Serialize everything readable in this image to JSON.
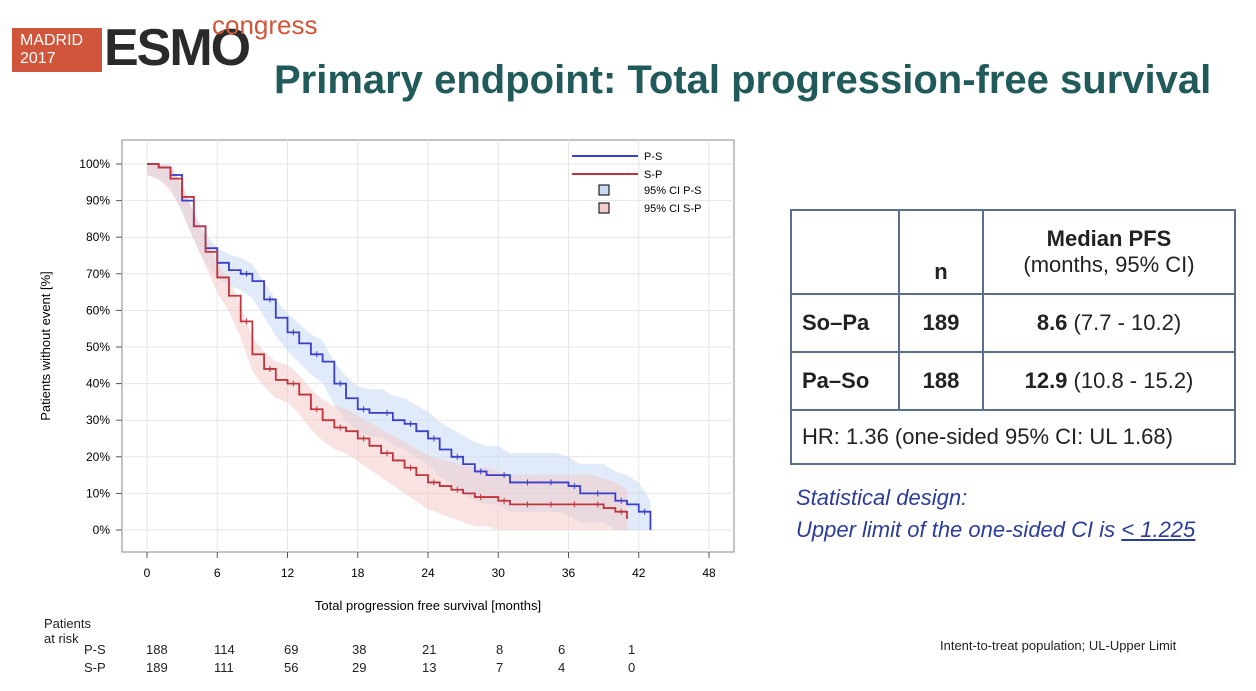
{
  "logo": {
    "city": "MADRID",
    "year": "2017",
    "brand": "ESMO",
    "suffix": "congress"
  },
  "title": "Primary endpoint: Total progression-free survival",
  "chart_data": {
    "type": "line",
    "xlabel": "Total progression free survival [months]",
    "ylabel": "Patients without event [%]",
    "xlim": [
      0,
      48
    ],
    "ylim": [
      0,
      100
    ],
    "x_ticks": [
      "0",
      "6",
      "12",
      "18",
      "24",
      "30",
      "36",
      "42",
      "48"
    ],
    "y_ticks": [
      "0%",
      "10%",
      "20%",
      "30%",
      "40%",
      "50%",
      "60%",
      "70%",
      "80%",
      "90%",
      "100%"
    ],
    "legend": {
      "position": "top-right",
      "entries": [
        "P-S",
        "S-P",
        "95% CI P-S",
        "95% CI S-P"
      ]
    },
    "series": [
      {
        "name": "P-S",
        "color": "#3b3fc9",
        "ci_color": "#c9d8f3",
        "x": [
          0,
          1,
          2,
          3,
          4,
          5,
          6,
          7,
          8,
          9,
          10,
          11,
          12,
          13,
          14,
          15,
          16,
          17,
          18,
          19,
          20,
          21,
          22,
          23,
          24,
          25,
          26,
          27,
          28,
          29,
          30,
          31,
          32,
          33,
          34,
          35,
          36,
          37,
          38,
          39,
          40,
          41,
          42,
          43
        ],
        "y": [
          100,
          99,
          97,
          90,
          83,
          77,
          73,
          71,
          70,
          68,
          63,
          58,
          54,
          51,
          48,
          46,
          40,
          36,
          33,
          32,
          32,
          30,
          29,
          27,
          25,
          22,
          20,
          18,
          16,
          15,
          15,
          13,
          13,
          13,
          13,
          13,
          12,
          10,
          10,
          10,
          8,
          7,
          5,
          0
        ]
      },
      {
        "name": "S-P",
        "color": "#c0343c",
        "ci_color": "#f3cbcb",
        "x": [
          0,
          1,
          2,
          3,
          4,
          5,
          6,
          7,
          8,
          9,
          10,
          11,
          12,
          13,
          14,
          15,
          16,
          17,
          18,
          19,
          20,
          21,
          22,
          23,
          24,
          25,
          26,
          27,
          28,
          29,
          30,
          31,
          32,
          33,
          34,
          35,
          36,
          37,
          38,
          39,
          40,
          41
        ],
        "y": [
          100,
          99,
          96,
          91,
          83,
          76,
          69,
          64,
          57,
          48,
          44,
          41,
          40,
          37,
          33,
          30,
          28,
          27,
          25,
          23,
          21,
          19,
          17,
          15,
          13,
          12,
          11,
          10,
          9,
          9,
          8,
          7,
          7,
          7,
          7,
          7,
          7,
          7,
          7,
          6,
          5,
          3
        ]
      }
    ]
  },
  "risk_table": {
    "title": "Patients at risk",
    "rows": [
      {
        "label": "P-S",
        "values": [
          "188",
          "114",
          "69",
          "38",
          "21",
          "8",
          "6",
          "1"
        ]
      },
      {
        "label": "S-P",
        "values": [
          "189",
          "111",
          "56",
          "29",
          "13",
          "7",
          "4",
          "0"
        ]
      }
    ]
  },
  "pfs_table": {
    "header": {
      "n": "n",
      "median": "Median PFS",
      "median_sub": "(months, 95% CI)"
    },
    "rows": [
      {
        "label": "So–Pa",
        "n": "189",
        "median": "8.6",
        "ci": "(7.7 - 10.2)"
      },
      {
        "label": "Pa–So",
        "n": "188",
        "median": "12.9",
        "ci": "(10.8 - 15.2)"
      }
    ],
    "hr": "HR: 1.36 (one-sided 95% CI: UL 1.68)"
  },
  "statistical_design": {
    "heading": "Statistical design:",
    "text": "Upper limit of the one-sided CI is ",
    "threshold": "< 1.225"
  },
  "footnote": "Intent-to-treat population; UL-Upper Limit"
}
